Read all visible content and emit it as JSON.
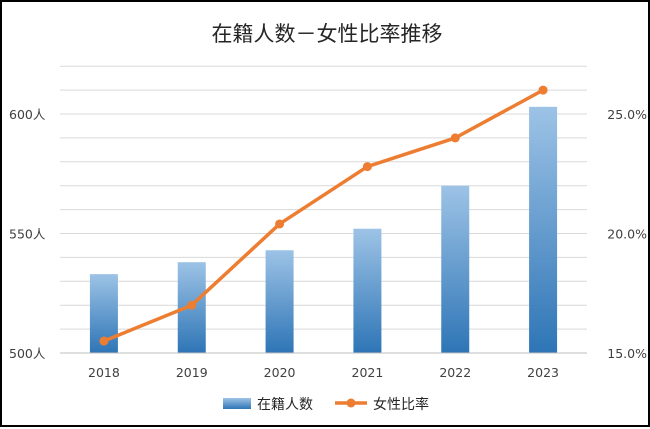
{
  "chart_data": {
    "type": "bar",
    "title": "在籍人数－女性比率推移",
    "categories": [
      "2018",
      "2019",
      "2020",
      "2021",
      "2022",
      "2023"
    ],
    "series": [
      {
        "name": "在籍人数",
        "type": "bar",
        "axis": "left",
        "values": [
          533,
          538,
          543,
          552,
          570,
          603
        ]
      },
      {
        "name": "女性比率",
        "type": "line",
        "axis": "right",
        "values": [
          15.5,
          17.0,
          20.4,
          22.8,
          24.0,
          26.0
        ]
      }
    ],
    "y_left": {
      "min": 500,
      "max": 600,
      "ticks": [
        "500人",
        "550人",
        "600人"
      ],
      "tick_values": [
        500,
        550,
        600
      ]
    },
    "y_right": {
      "min": 15.0,
      "max": 25.0,
      "ticks": [
        "15.0%",
        "20.0%",
        "25.0%"
      ],
      "tick_values": [
        15.0,
        20.0,
        25.0
      ]
    },
    "grid": true,
    "legend_position": "bottom",
    "colors": {
      "bar_top": "#9DC3E6",
      "bar_bottom": "#2E75B6",
      "line": "#ED7D31",
      "grid": "#D9D9D9",
      "axis": "#BFBFBF"
    }
  }
}
